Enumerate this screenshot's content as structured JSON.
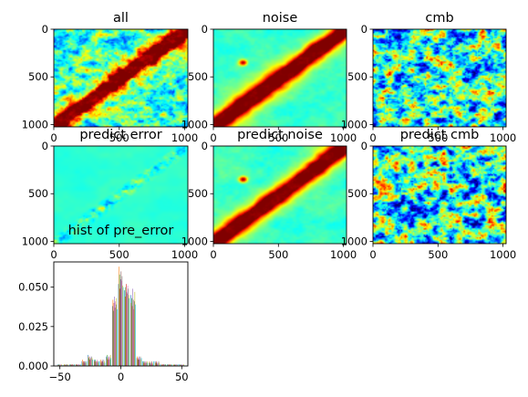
{
  "chart_data": [
    {
      "type": "heatmap",
      "title": "all",
      "colormap": "jet",
      "pattern": "diagonal-band-with-noise",
      "x_ticks": [
        "0",
        "500",
        "1000"
      ],
      "y_ticks": [
        "0",
        "500",
        "1000"
      ],
      "xlim": [
        0,
        1024
      ],
      "ylim": [
        1024,
        0
      ]
    },
    {
      "type": "heatmap",
      "title": "noise",
      "colormap": "jet",
      "pattern": "diagonal-band-smooth",
      "x_ticks": [
        "0",
        "500",
        "1000"
      ],
      "y_ticks": [
        "0",
        "500",
        "1000"
      ],
      "xlim": [
        0,
        1024
      ],
      "ylim": [
        1024,
        0
      ]
    },
    {
      "type": "heatmap",
      "title": "cmb",
      "colormap": "jet",
      "pattern": "random-field",
      "x_ticks": [
        "0",
        "500",
        "1000"
      ],
      "y_ticks": [
        "0",
        "500",
        "1000"
      ],
      "xlim": [
        0,
        1024
      ],
      "ylim": [
        1024,
        0
      ]
    },
    {
      "type": "heatmap",
      "title": "predict error",
      "colormap": "jet",
      "pattern": "faint-diagonal",
      "x_ticks": [
        "0",
        "500",
        "1000"
      ],
      "y_ticks": [
        "0",
        "500",
        "1000"
      ],
      "xlim": [
        0,
        1024
      ],
      "ylim": [
        1024,
        0
      ]
    },
    {
      "type": "heatmap",
      "title": "predict noise",
      "colormap": "jet",
      "pattern": "diagonal-band-smooth",
      "x_ticks": [
        "0",
        "500",
        "1000"
      ],
      "y_ticks": [
        "0",
        "500",
        "1000"
      ],
      "xlim": [
        0,
        1024
      ],
      "ylim": [
        1024,
        0
      ]
    },
    {
      "type": "heatmap",
      "title": "predict cmb",
      "colormap": "jet",
      "pattern": "random-field",
      "x_ticks": [
        "0",
        "500",
        "1000"
      ],
      "y_ticks": [
        "0",
        "500",
        "1000"
      ],
      "xlim": [
        0,
        1024
      ],
      "ylim": [
        1024,
        0
      ]
    },
    {
      "type": "bar",
      "title": "hist of pre_error",
      "x_ticks": [
        "−50",
        "0",
        "50"
      ],
      "x_tick_values": [
        -50,
        0,
        50
      ],
      "y_ticks": [
        "0.000",
        "0.025",
        "0.050"
      ],
      "y_tick_values": [
        0,
        0.025,
        0.05
      ],
      "xlim": [
        -55,
        55
      ],
      "ylim": [
        0,
        0.066
      ],
      "bins": [
        -50,
        -45,
        -40,
        -35,
        -30,
        -25,
        -20,
        -15,
        -10,
        -5,
        0,
        5,
        10,
        15,
        20,
        25,
        30,
        35,
        40,
        45,
        50
      ],
      "colors": [
        "#1f77b4",
        "#ff7f0e",
        "#2ca02c",
        "#d62728",
        "#9467bd",
        "#8c564b",
        "#e377c2",
        "#7f7f7f",
        "#bcbd22",
        "#17becf"
      ],
      "series": [
        {
          "values": [
            0.001,
            0.0005,
            0.001,
            0.001,
            0.003,
            0.007,
            0.004,
            0.003,
            0.006,
            0.038,
            0.052,
            0.048,
            0.045,
            0.005,
            0.003,
            0.002,
            0.003,
            0.001,
            0.001,
            0.0005,
            0.001
          ]
        },
        {
          "values": [
            0.0005,
            0.001,
            0.0005,
            0.001,
            0.004,
            0.006,
            0.003,
            0.004,
            0.005,
            0.042,
            0.063,
            0.044,
            0.04,
            0.006,
            0.002,
            0.003,
            0.002,
            0.001,
            0.0005,
            0.001,
            0.0005
          ]
        },
        {
          "values": [
            0.001,
            0.001,
            0.001,
            0.0005,
            0.002,
            0.005,
            0.004,
            0.002,
            0.007,
            0.035,
            0.058,
            0.05,
            0.043,
            0.004,
            0.003,
            0.002,
            0.002,
            0.0005,
            0.001,
            0.001,
            0.001
          ]
        },
        {
          "values": [
            0.0005,
            0.0005,
            0.001,
            0.001,
            0.003,
            0.004,
            0.003,
            0.003,
            0.004,
            0.04,
            0.049,
            0.052,
            0.038,
            0.005,
            0.002,
            0.001,
            0.003,
            0.001,
            0.001,
            0.0005,
            0.0005
          ]
        },
        {
          "values": [
            0.001,
            0.0005,
            0.0005,
            0.001,
            0.002,
            0.006,
            0.002,
            0.004,
            0.006,
            0.044,
            0.055,
            0.047,
            0.049,
            0.006,
            0.003,
            0.002,
            0.002,
            0.001,
            0.0005,
            0.001,
            0.001
          ]
        },
        {
          "values": [
            0.0005,
            0.001,
            0.001,
            0.0005,
            0.003,
            0.005,
            0.003,
            0.003,
            0.005,
            0.037,
            0.06,
            0.046,
            0.042,
            0.004,
            0.002,
            0.003,
            0.001,
            0.001,
            0.001,
            0.0005,
            0.0005
          ]
        },
        {
          "values": [
            0.001,
            0.0005,
            0.001,
            0.001,
            0.002,
            0.004,
            0.004,
            0.002,
            0.006,
            0.041,
            0.054,
            0.051,
            0.036,
            0.005,
            0.003,
            0.002,
            0.002,
            0.0005,
            0.001,
            0.001,
            0.001
          ]
        },
        {
          "values": [
            0.0005,
            0.001,
            0.0005,
            0.001,
            0.003,
            0.006,
            0.003,
            0.004,
            0.004,
            0.039,
            0.057,
            0.049,
            0.041,
            0.006,
            0.002,
            0.001,
            0.003,
            0.001,
            0.0005,
            0.001,
            0.0005
          ]
        },
        {
          "values": [
            0.001,
            0.001,
            0.001,
            0.0005,
            0.002,
            0.005,
            0.002,
            0.003,
            0.007,
            0.043,
            0.051,
            0.045,
            0.047,
            0.004,
            0.003,
            0.002,
            0.002,
            0.001,
            0.001,
            0.0005,
            0.001
          ]
        },
        {
          "values": [
            0.0005,
            0.0005,
            0.001,
            0.001,
            0.003,
            0.004,
            0.003,
            0.002,
            0.005,
            0.036,
            0.05,
            0.043,
            0.039,
            0.005,
            0.002,
            0.003,
            0.001,
            0.001,
            0.001,
            0.001,
            0.0005
          ]
        }
      ]
    }
  ]
}
